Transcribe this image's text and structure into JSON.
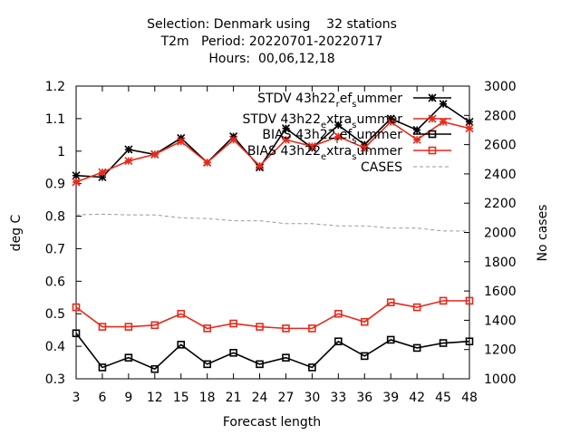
{
  "chart_data": {
    "type": "line",
    "title_lines": [
      "Selection: Denmark using    32 stations",
      "T2m   Period: 20220701-20220717",
      "Hours:  00,06,12,18"
    ],
    "xlabel": "Forecast length",
    "ylabel": "deg C",
    "y2label": "No cases",
    "x": [
      3,
      6,
      9,
      12,
      15,
      18,
      21,
      24,
      27,
      30,
      33,
      36,
      39,
      42,
      45,
      48
    ],
    "xlim": [
      3,
      48
    ],
    "ylim": [
      0.3,
      1.2
    ],
    "y2lim": [
      1000,
      3000
    ],
    "yticks": [
      "0.3",
      "0.4",
      "0.5",
      "0.6",
      "0.7",
      "0.8",
      "0.9",
      "1",
      "1.1",
      "1.2"
    ],
    "y2ticks": [
      "1000",
      "1200",
      "1400",
      "1600",
      "1800",
      "2000",
      "2200",
      "2400",
      "2600",
      "2800",
      "3000"
    ],
    "legend_position": "top-right",
    "series": [
      {
        "name": "STDV 43h22_ref_summer",
        "legend": {
          "a": "STDV 43h22",
          "b": "r",
          "c": "ef",
          "d": "s",
          "e": "ummer"
        },
        "color": "#000000",
        "marker": "star",
        "axis": "y1",
        "values": [
          0.925,
          0.92,
          1.005,
          0.99,
          1.04,
          0.965,
          1.045,
          0.95,
          1.07,
          1.01,
          1.08,
          1.02,
          1.1,
          1.065,
          1.145,
          1.09
        ]
      },
      {
        "name": "STDV 43h22_extra_summer",
        "legend": {
          "a": "STDV 43h22",
          "b": "e",
          "c": "xtra",
          "d": "s",
          "e": "ummer"
        },
        "color": "#e8291c",
        "marker": "star",
        "axis": "y1",
        "values": [
          0.905,
          0.935,
          0.97,
          0.99,
          1.03,
          0.965,
          1.035,
          0.955,
          1.035,
          1.015,
          1.045,
          1.01,
          1.09,
          1.035,
          1.09,
          1.07
        ]
      },
      {
        "name": "BIAS 43h22_ref_summer",
        "legend": {
          "a": "BIAS 43h22",
          "b": "r",
          "c": "ef",
          "d": "s",
          "e": "ummer"
        },
        "color": "#000000",
        "marker": "square",
        "axis": "y1",
        "values": [
          0.44,
          0.335,
          0.365,
          0.33,
          0.405,
          0.345,
          0.38,
          0.345,
          0.365,
          0.335,
          0.415,
          0.37,
          0.42,
          0.395,
          0.41,
          0.415
        ]
      },
      {
        "name": "BIAS 43h22_extra_summer",
        "legend": {
          "a": "BIAS 43h22",
          "b": "e",
          "c": "xtra",
          "d": "s",
          "e": "ummer"
        },
        "color": "#e8291c",
        "marker": "square",
        "axis": "y1",
        "values": [
          0.52,
          0.46,
          0.46,
          0.465,
          0.5,
          0.455,
          0.47,
          0.46,
          0.455,
          0.455,
          0.5,
          0.475,
          0.535,
          0.52,
          0.54,
          0.54
        ]
      },
      {
        "name": "CASES",
        "legend": {
          "a": "CASES",
          "b": "",
          "c": "",
          "d": "",
          "e": ""
        },
        "color": "#999999",
        "marker": "none",
        "dashed": true,
        "axis": "y2",
        "values": [
          2120,
          2125,
          2120,
          2120,
          2100,
          2095,
          2080,
          2080,
          2060,
          2060,
          2045,
          2045,
          2030,
          2030,
          2010,
          2010
        ]
      }
    ]
  }
}
